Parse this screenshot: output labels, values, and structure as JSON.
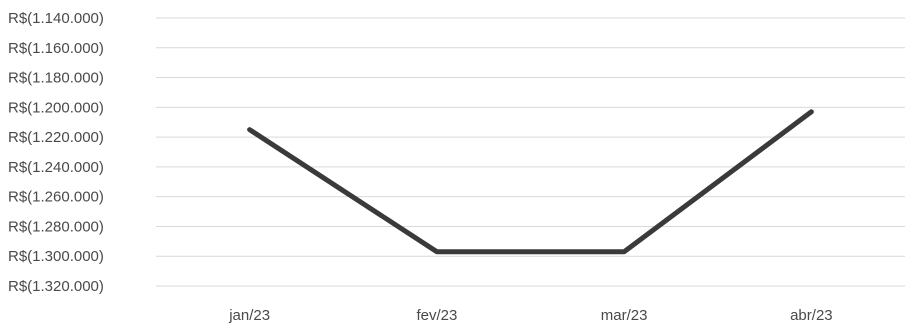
{
  "chart_data": {
    "type": "line",
    "categories": [
      "jan/23",
      "fev/23",
      "mar/23",
      "abr/23"
    ],
    "series": [
      {
        "values": [
          -1215000,
          -1297000,
          -1297000,
          -1203000
        ]
      }
    ],
    "y_tick_values": [
      -1140000,
      -1160000,
      -1180000,
      -1200000,
      -1220000,
      -1240000,
      -1260000,
      -1280000,
      -1300000,
      -1320000
    ],
    "y_tick_labels": [
      "R$(1.140.000)",
      "R$(1.160.000)",
      "R$(1.180.000)",
      "R$(1.200.000)",
      "R$(1.220.000)",
      "R$(1.240.000)",
      "R$(1.260.000)",
      "R$(1.280.000)",
      "R$(1.300.000)",
      "R$(1.320.000)"
    ],
    "ylim": [
      -1320000,
      -1140000
    ],
    "grid": true,
    "colors": {
      "line": "#3a3a3a",
      "grid": "#d9d9d9",
      "text": "#4a4a4a"
    }
  }
}
